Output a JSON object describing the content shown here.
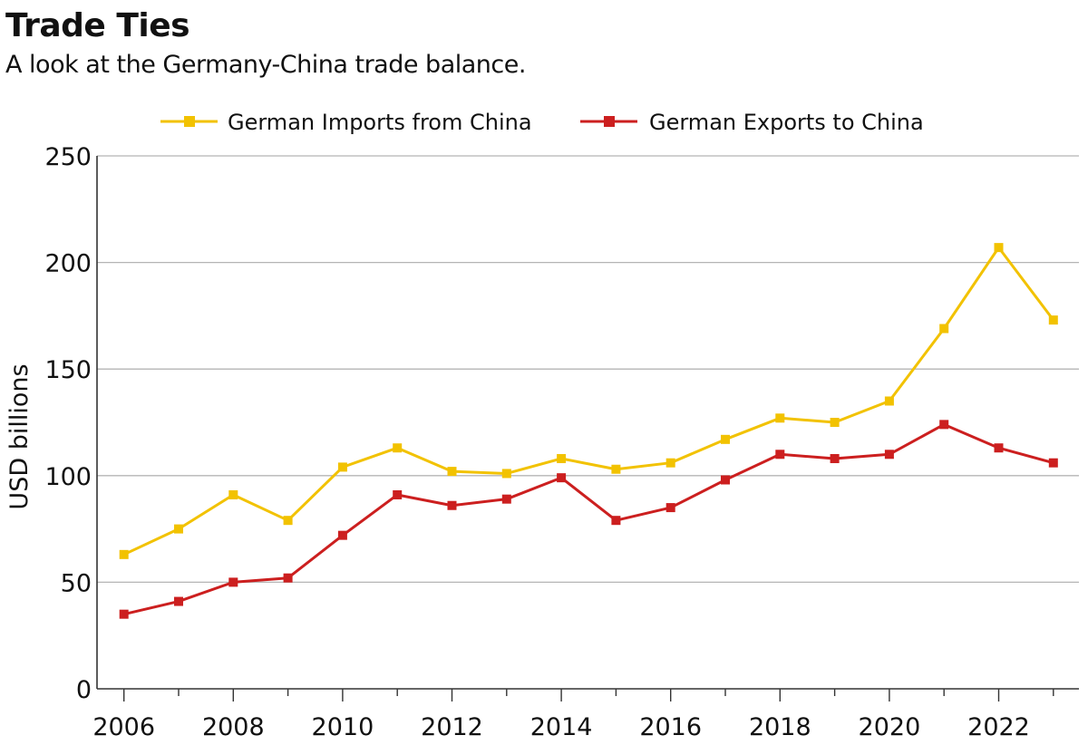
{
  "header": {
    "title": "Trade Ties",
    "subtitle": "A look at the Germany-China trade balance."
  },
  "chart_data": {
    "type": "line",
    "title": "Trade Ties",
    "subtitle": "A look at the Germany-China trade balance.",
    "xlabel": "",
    "ylabel": "USD billions",
    "x": [
      2006,
      2007,
      2008,
      2009,
      2010,
      2011,
      2012,
      2013,
      2014,
      2015,
      2016,
      2017,
      2018,
      2019,
      2020,
      2021,
      2022,
      2023
    ],
    "x_tick_labels": [
      "2006",
      "2008",
      "2010",
      "2012",
      "2014",
      "2016",
      "2018",
      "2020",
      "2022"
    ],
    "y_ticks": [
      0,
      50,
      100,
      150,
      200,
      250
    ],
    "y_tick_labels": [
      "0",
      "50",
      "100",
      "150",
      "200",
      "250"
    ],
    "ylim": [
      0,
      250
    ],
    "xlim": [
      2005.5,
      2023.5
    ],
    "grid": "horizontal",
    "legend_position": "top-center",
    "series": [
      {
        "name": "German Imports from China",
        "color": "#F2C200",
        "marker": "square",
        "values": [
          63,
          75,
          91,
          79,
          104,
          113,
          102,
          101,
          108,
          103,
          106,
          117,
          127,
          125,
          135,
          169,
          207,
          173
        ]
      },
      {
        "name": "German Exports to China",
        "color": "#CC1F1F",
        "marker": "square",
        "values": [
          35,
          41,
          50,
          52,
          72,
          91,
          86,
          89,
          99,
          79,
          85,
          98,
          110,
          108,
          110,
          124,
          113,
          106
        ]
      }
    ]
  }
}
